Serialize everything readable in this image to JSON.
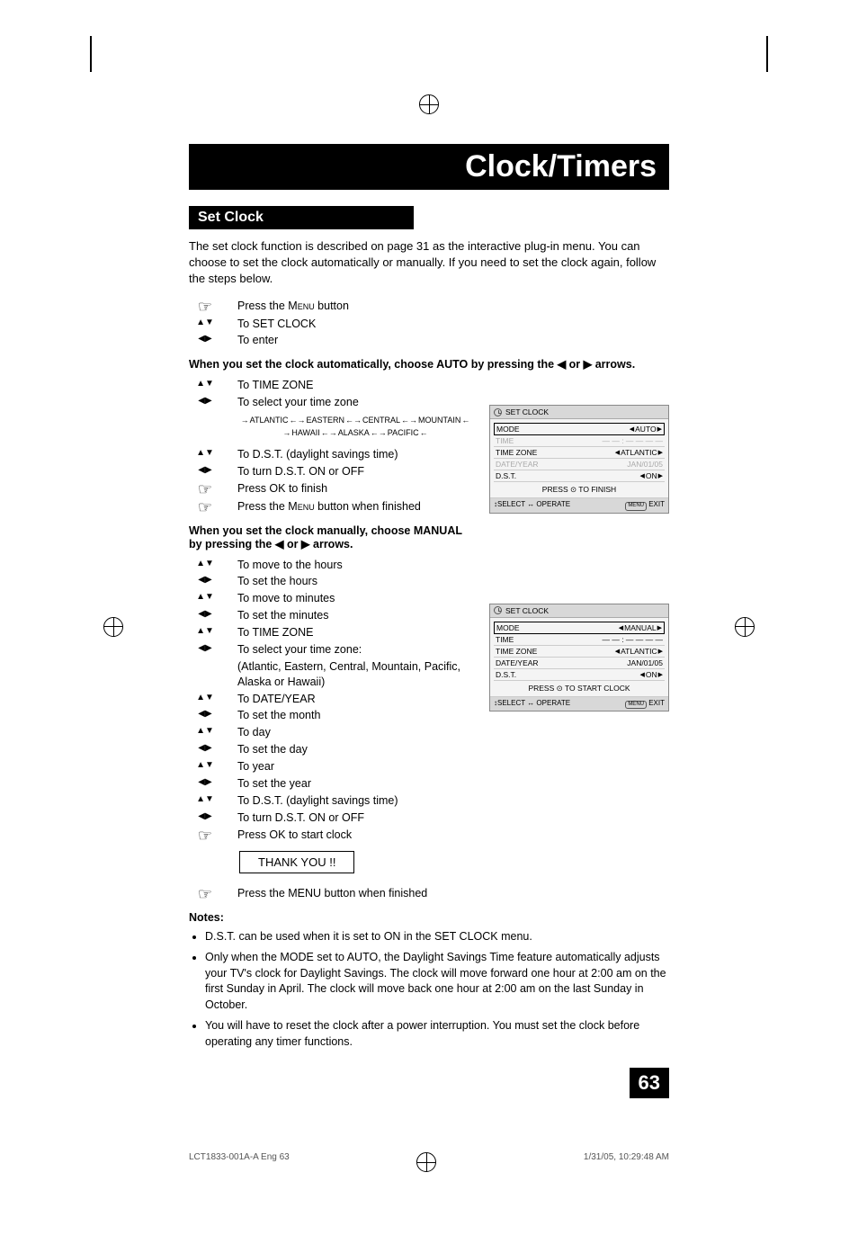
{
  "header": {
    "title": "Clock/Timers"
  },
  "section": {
    "title": "Set Clock"
  },
  "intro": "The set clock function is described on page 31 as the interactive plug-in menu. You can choose to set the clock automatically or manually. If you need to set the clock again, follow the steps below.",
  "steps_top": [
    {
      "icon": "hand",
      "text_pre": "Press the ",
      "text_sc": "Menu",
      "text_post": " button"
    },
    {
      "icon": "ud",
      "text": "To SET CLOCK"
    },
    {
      "icon": "lr",
      "text": "To enter"
    }
  ],
  "auto_heading": "When you set the clock automatically, choose AUTO by pressing the ◀ or ▶ arrows.",
  "steps_auto": [
    {
      "icon": "ud",
      "text": "To TIME ZONE"
    },
    {
      "icon": "lr",
      "text": "To select your time zone"
    }
  ],
  "tz_row1_items": [
    "ATLANTIC",
    "EASTERN",
    "CENTRAL",
    "MOUNTAIN"
  ],
  "tz_row2_items": [
    "HAWAII",
    "ALASKA",
    "PACIFIC"
  ],
  "steps_auto2": [
    {
      "icon": "ud",
      "text": "To D.S.T. (daylight savings time)"
    },
    {
      "icon": "lr",
      "text": "To turn D.S.T. ON or OFF"
    },
    {
      "icon": "hand",
      "text": "Press OK to finish"
    },
    {
      "icon": "hand",
      "text_pre": "Press the ",
      "text_sc": "Menu",
      "text_post": " button when finished"
    }
  ],
  "manual_heading": "When you set the clock manually, choose MANUAL by pressing the ◀ or ▶ arrows.",
  "steps_manual": [
    {
      "icon": "ud",
      "text": "To move to the hours"
    },
    {
      "icon": "lr",
      "text": "To set the hours"
    },
    {
      "icon": "ud",
      "text": "To move to minutes"
    },
    {
      "icon": "lr",
      "text": "To set the minutes"
    },
    {
      "icon": "ud",
      "text": "To TIME ZONE"
    },
    {
      "icon": "lr",
      "text": "To select your time zone:"
    }
  ],
  "tz_parenthetical": "(Atlantic, Eastern, Central, Mountain, Pacific, Alaska or Hawaii)",
  "steps_manual2": [
    {
      "icon": "ud",
      "text": "To DATE/YEAR"
    },
    {
      "icon": "lr",
      "text": "To set the month"
    },
    {
      "icon": "ud",
      "text": "To day"
    },
    {
      "icon": "lr",
      "text": "To set the day"
    },
    {
      "icon": "ud",
      "text": "To year"
    },
    {
      "icon": "lr",
      "text": "To set the year"
    },
    {
      "icon": "ud",
      "text": "To D.S.T. (daylight savings time)"
    },
    {
      "icon": "lr",
      "text": "To turn D.S.T. ON or OFF"
    },
    {
      "icon": "hand",
      "text": "Press OK to start clock"
    }
  ],
  "thanks": "THANK YOU !!",
  "steps_final": [
    {
      "icon": "hand",
      "text": "Press the MENU button when finished"
    }
  ],
  "notes_header": "Notes:",
  "notes": [
    "D.S.T. can be used when it is set to ON in the SET CLOCK menu.",
    "Only when the MODE set to AUTO, the Daylight Savings Time feature automatically adjusts your TV's clock for Daylight Savings. The clock will move forward one hour at 2:00 am on the first Sunday in April. The clock will move back one hour at 2:00 am on the last Sunday in October.",
    "You will have to reset the clock after a power interruption. You must set the clock before operating any timer functions."
  ],
  "osd1": {
    "title": "SET CLOCK",
    "rows": [
      {
        "label": "MODE",
        "value": "AUTO",
        "sel": true,
        "dim": false,
        "arrows": true
      },
      {
        "label": "TIME",
        "value": "— — : — — — —",
        "sel": false,
        "dim": true,
        "arrows": false
      },
      {
        "label": "TIME ZONE",
        "value": "ATLANTIC",
        "sel": false,
        "dim": false,
        "arrows": true
      },
      {
        "label": "DATE/YEAR",
        "value": "JAN/01/05",
        "sel": false,
        "dim": true,
        "arrows": false
      },
      {
        "label": "D.S.T.",
        "value": "ON",
        "sel": false,
        "dim": false,
        "arrows": true
      }
    ],
    "press": "PRESS ⊙ TO FINISH",
    "footer_left": "↕SELECT ↔ OPERATE",
    "footer_right": "EXIT"
  },
  "osd2": {
    "title": "SET CLOCK",
    "rows": [
      {
        "label": "MODE",
        "value": "MANUAL",
        "sel": true,
        "dim": false,
        "arrows": true
      },
      {
        "label": "TIME",
        "value": "— — : — — — —",
        "sel": false,
        "dim": false,
        "arrows": false
      },
      {
        "label": "TIME ZONE",
        "value": "ATLANTIC",
        "sel": false,
        "dim": false,
        "arrows": true
      },
      {
        "label": "DATE/YEAR",
        "value": "JAN/01/05",
        "sel": false,
        "dim": false,
        "arrows": false
      },
      {
        "label": "D.S.T.",
        "value": "ON",
        "sel": false,
        "dim": false,
        "arrows": true
      }
    ],
    "press": "PRESS ⊙ TO START CLOCK",
    "footer_left": "↕SELECT ↔ OPERATE",
    "footer_right": "EXIT"
  },
  "page_number": "63",
  "footer": {
    "left": "LCT1833-001A-A Eng   63",
    "right": "1/31/05, 10:29:48 AM"
  },
  "colors": {
    "black": "#000000",
    "white": "#ffffff",
    "osd_bg": "#f4f4f4",
    "osd_header": "#d8d8d8",
    "dim_text": "#aaaaaa"
  }
}
